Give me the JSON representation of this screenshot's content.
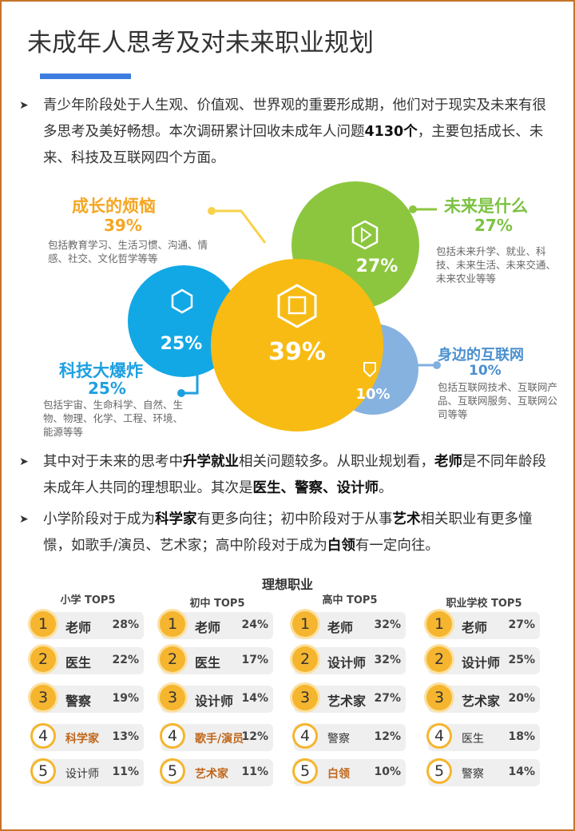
{
  "header": {
    "title": "未成年人思考及对未来职业规划"
  },
  "paragraphs": [
    [
      {
        "text": "青少年阶段处于人生观、价值观、世界观的重要形成期，他们对于现实及未来有很多思考及美好畅想。本次调研累计回收未成年人问题",
        "bold": false
      },
      {
        "text": "4130个",
        "bold": true
      },
      {
        "text": "，主要包括成长、未来、科技及互联网四个方面。",
        "bold": false
      }
    ],
    [
      {
        "text": "其中对于未来的思考中",
        "bold": false
      },
      {
        "text": "升学就业",
        "bold": true
      },
      {
        "text": "相关问题较多。从职业规划看，",
        "bold": false
      },
      {
        "text": "老师",
        "bold": true
      },
      {
        "text": "是不同年龄段未成年人共同的理想职业。其次是",
        "bold": false
      },
      {
        "text": "医生、警察、设计师",
        "bold": true
      },
      {
        "text": "。",
        "bold": false
      }
    ],
    [
      {
        "text": "小学阶段对于成为",
        "bold": false
      },
      {
        "text": "科学家",
        "bold": true
      },
      {
        "text": "有更多向往；初中阶段对于从事",
        "bold": false
      },
      {
        "text": "艺术",
        "bold": true
      },
      {
        "text": "相关职业有更多憧憬，如歌手/演员、艺术家；高中阶段对于成为",
        "bold": false
      },
      {
        "text": "白领",
        "bold": true
      },
      {
        "text": "有一定向往。",
        "bold": false
      }
    ]
  ],
  "topics": [
    {
      "name": "成长的烦恼",
      "percent": "39%",
      "desc": "包括教育学习、生活习惯、沟通、情感、社交、文化哲学等等"
    },
    {
      "name": "未来是什么",
      "percent": "27%",
      "desc": "包括未来升学、就业、科技、未来生活、未来交通、未来农业等等"
    },
    {
      "name": "科技大爆炸",
      "percent": "25%",
      "desc": "包括宇宙、生命科学、自然、生物、物理、化学、工程、环境、能源等等"
    },
    {
      "name": "身边的互联网",
      "percent": "10%",
      "desc": "包括互联网技术、互联网产品、互联网服务、互联网公司等等"
    }
  ],
  "careers": {
    "title": "理想职业",
    "columns": [
      {
        "header": "小学 TOP5",
        "rows": [
          [
            "1",
            "老师",
            "28%"
          ],
          [
            "2",
            "医生",
            "22%"
          ],
          [
            "3",
            "警察",
            "19%"
          ],
          [
            "4",
            "科学家",
            "13%"
          ],
          [
            "5",
            "设计师",
            "11%"
          ]
        ]
      },
      {
        "header": "初中 TOP5",
        "rows": [
          [
            "1",
            "老师",
            "24%"
          ],
          [
            "2",
            "医生",
            "17%"
          ],
          [
            "3",
            "设计师",
            "14%"
          ],
          [
            "4",
            "歌手/演员",
            "12%"
          ],
          [
            "5",
            "艺术家",
            "11%"
          ]
        ]
      },
      {
        "header": "高中 TOP5",
        "rows": [
          [
            "1",
            "老师",
            "32%"
          ],
          [
            "2",
            "设计师",
            "32%"
          ],
          [
            "3",
            "艺术家",
            "27%"
          ],
          [
            "4",
            "警察",
            "12%"
          ],
          [
            "5",
            "白领",
            "10%"
          ]
        ]
      },
      {
        "header": "职业学校  TOP5",
        "rows": [
          [
            "1",
            "老师",
            "27%"
          ],
          [
            "2",
            "设计师",
            "25%"
          ],
          [
            "3",
            "艺术家",
            "20%"
          ],
          [
            "4",
            "医生",
            "18%"
          ],
          [
            "5",
            "警察",
            "14%"
          ]
        ]
      }
    ]
  }
}
